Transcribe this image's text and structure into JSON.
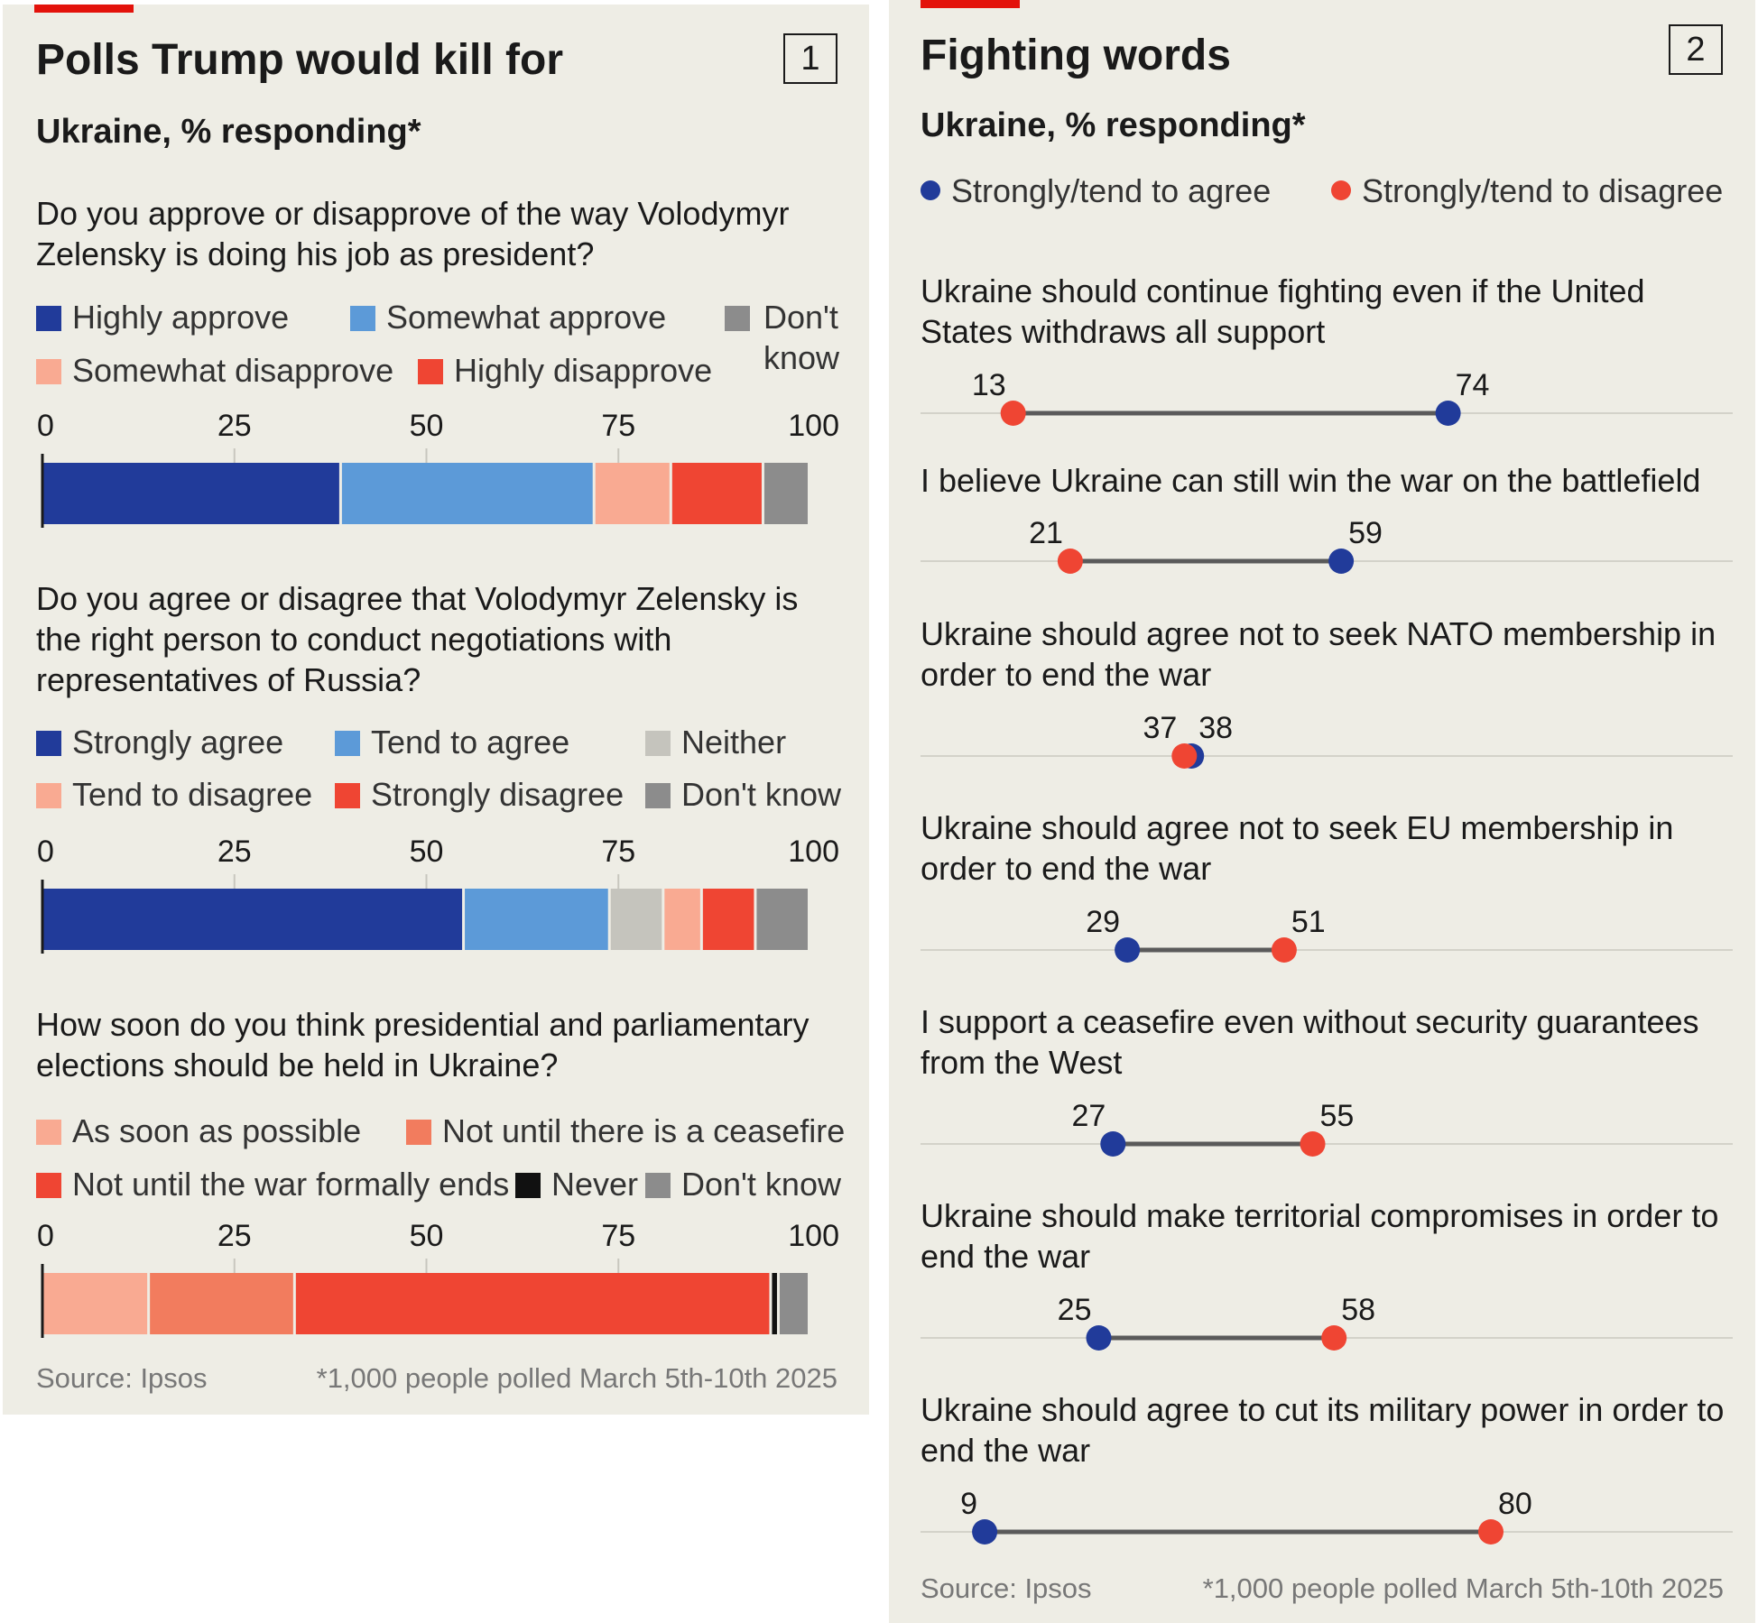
{
  "colors": {
    "background": "#eeede5",
    "red_accent": "#e3120b",
    "highly_approve": "#213b9a",
    "somewhat_approve": "#5c9ad8",
    "somewhat_disapprove": "#f9aa92",
    "highly_disapprove": "#ef4533",
    "dont_know": "#8c8c8c",
    "neither": "#c5c4bd",
    "not_until_ceasefire": "#f27c5e",
    "never": "#111111",
    "agree_dot": "#213b9a",
    "disagree_dot": "#ef4533"
  },
  "panel1": {
    "number": "1",
    "title": "Polls Trump would kill for",
    "subtitle": "Ukraine, % responding*",
    "source": "Source: Ipsos",
    "footnote": "*1,000 people polled March 5th-10th 2025",
    "ticks": [
      "0",
      "25",
      "50",
      "75",
      "100"
    ]
  },
  "panel2": {
    "number": "2",
    "title": "Fighting words",
    "subtitle": "Ukraine, % responding*",
    "legend_agree": "Strongly/tend to agree",
    "legend_disagree": "Strongly/tend to disagree",
    "source": "Source: Ipsos",
    "footnote": "*1,000 people polled March 5th-10th 2025"
  },
  "chart_data": [
    {
      "type": "bar",
      "stacked": true,
      "orientation": "horizontal",
      "title": "Do you approve or disapprove of the way Volodymyr Zelensky is doing his job as president?",
      "xlim": [
        0,
        100
      ],
      "series": [
        {
          "name": "Highly approve",
          "values": [
            39
          ]
        },
        {
          "name": "Somewhat approve",
          "values": [
            33
          ]
        },
        {
          "name": "Somewhat disapprove",
          "values": [
            10
          ]
        },
        {
          "name": "Highly disapprove",
          "values": [
            12
          ]
        },
        {
          "name": "Don't know",
          "values": [
            6
          ]
        }
      ]
    },
    {
      "type": "bar",
      "stacked": true,
      "orientation": "horizontal",
      "title": "Do you agree or disagree that Volodymyr Zelensky is the right person to conduct negotiations with representatives of Russia?",
      "xlim": [
        0,
        100
      ],
      "series": [
        {
          "name": "Strongly agree",
          "values": [
            55
          ]
        },
        {
          "name": "Tend to agree",
          "values": [
            19
          ]
        },
        {
          "name": "Neither",
          "values": [
            7
          ]
        },
        {
          "name": "Tend to disagree",
          "values": [
            5
          ]
        },
        {
          "name": "Strongly disagree",
          "values": [
            7
          ]
        },
        {
          "name": "Don't know",
          "values": [
            7
          ]
        }
      ]
    },
    {
      "type": "bar",
      "stacked": true,
      "orientation": "horizontal",
      "title": "How soon do you think presidential and parliamentary elections should be held in Ukraine?",
      "xlim": [
        0,
        100
      ],
      "series": [
        {
          "name": "As soon as possible",
          "values": [
            14
          ]
        },
        {
          "name": "Not until there is a ceasefire",
          "values": [
            19
          ]
        },
        {
          "name": "Not until the war formally ends",
          "values": [
            62
          ]
        },
        {
          "name": "Never",
          "values": [
            1
          ]
        },
        {
          "name": "Don't know",
          "values": [
            4
          ]
        }
      ]
    },
    {
      "type": "scatter",
      "variant": "dumbbell",
      "series_names": [
        "Strongly/tend to agree",
        "Strongly/tend to disagree"
      ],
      "xlim": [
        0,
        100
      ],
      "items": [
        {
          "label": "Ukraine should continue fighting even if the United States withdraws all support",
          "agree": 74,
          "disagree": 13
        },
        {
          "label": "I believe Ukraine can still win the war on the battlefield",
          "agree": 59,
          "disagree": 21
        },
        {
          "label": "Ukraine should agree not to seek NATO membership in order to end the war",
          "agree": 38,
          "disagree": 37
        },
        {
          "label": "Ukraine should agree not to seek EU membership in order to end the war",
          "agree": 29,
          "disagree": 51
        },
        {
          "label": "I support a ceasefire even without security guarantees from the West",
          "agree": 27,
          "disagree": 55
        },
        {
          "label": "Ukraine should make territorial compromises in order to end the war",
          "agree": 25,
          "disagree": 58
        },
        {
          "label": "Ukraine should agree to cut its military power in order to end the war",
          "agree": 9,
          "disagree": 80
        }
      ]
    }
  ]
}
